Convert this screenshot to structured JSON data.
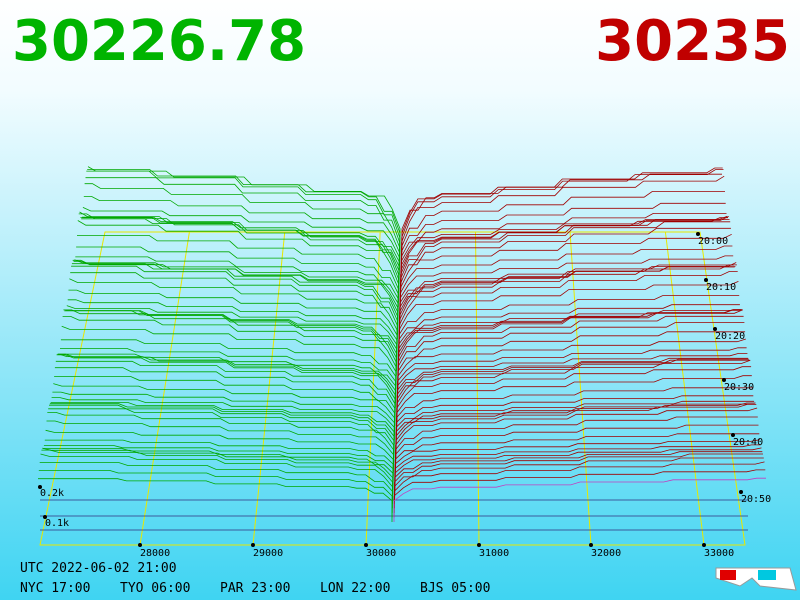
{
  "header": {
    "bid": "30226.78",
    "ask": "30235"
  },
  "price_axis": [
    "28000",
    "29000",
    "30000",
    "31000",
    "32000",
    "33000"
  ],
  "volume_axis": [
    "0.2k",
    "0.1k"
  ],
  "time_axis": [
    "20:00",
    "20:10",
    "20:20",
    "20:30",
    "20:40",
    "20:50"
  ],
  "clock": {
    "utc": "UTC 2022-06-02 21:00",
    "zones": [
      "NYC 17:00",
      "TYO 06:00",
      "PAR 23:00",
      "LON 22:00",
      "BJS 05:00"
    ]
  }
}
